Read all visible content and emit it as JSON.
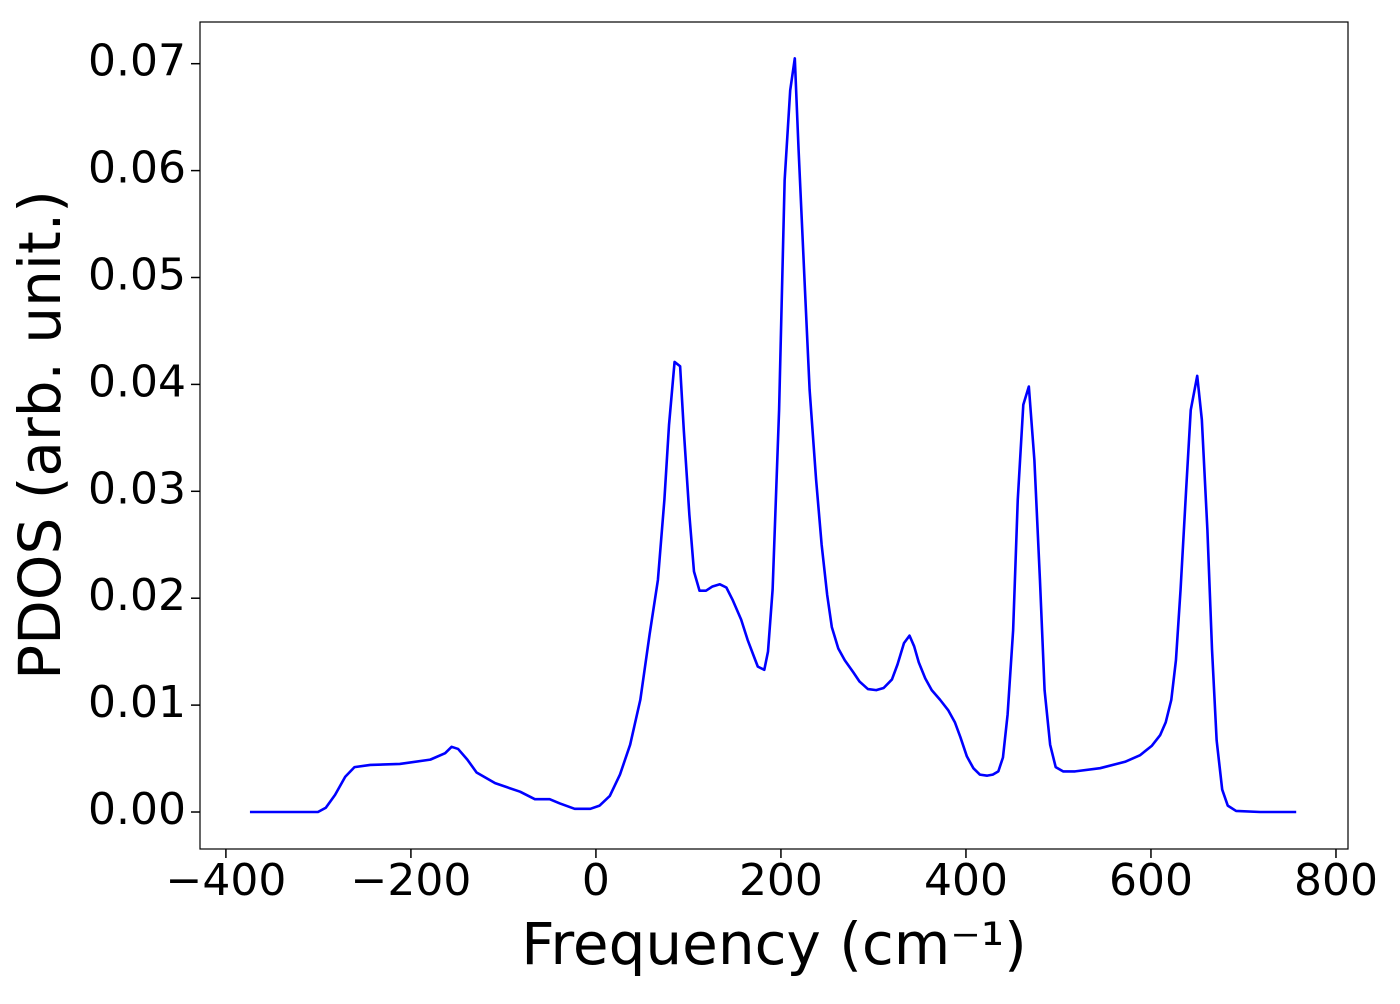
{
  "chart_data": {
    "type": "line",
    "xlabel": "Frequency (cm⁻¹)",
    "ylabel": "PDOS (arb. unit.)",
    "x": [
      -374,
      -300.5,
      -292,
      -282,
      -271,
      -261,
      -244,
      -212,
      -179,
      -163,
      -156,
      -149,
      -139,
      -129,
      -109,
      -82,
      -66,
      -50,
      -39,
      -23,
      -6,
      4,
      15,
      26,
      37,
      48,
      58,
      67,
      74,
      79,
      85,
      91,
      95,
      101,
      106,
      112,
      119,
      126,
      134,
      141,
      148,
      157,
      164,
      171,
      175,
      182,
      186,
      191,
      198,
      204,
      210,
      215,
      219,
      226,
      231,
      238,
      244,
      250,
      255,
      262,
      269,
      278,
      285,
      294,
      303,
      311,
      320,
      326,
      333,
      339,
      344,
      349,
      356,
      363,
      372,
      381,
      388,
      394,
      401,
      408,
      415,
      423,
      429,
      435,
      440,
      445,
      451,
      456,
      462,
      468,
      474,
      480,
      485,
      491,
      497,
      505,
      518,
      545,
      572,
      588,
      601,
      610,
      616,
      622,
      627,
      632,
      638,
      643,
      650,
      655,
      661,
      666,
      671,
      677,
      683,
      692,
      718,
      757
    ],
    "series": [
      {
        "name": "PDOS",
        "color": "#0000ff",
        "values": [
          0,
          0,
          0.0004,
          0.0016,
          0.0033,
          0.0042,
          0.0044,
          0.0045,
          0.0049,
          0.0055,
          0.0061,
          0.0059,
          0.0049,
          0.0037,
          0.0027,
          0.0019,
          0.0012,
          0.0012,
          0.0008,
          0.0003,
          0.0003,
          0.0006,
          0.0015,
          0.0035,
          0.0063,
          0.0105,
          0.0166,
          0.0217,
          0.0292,
          0.0362,
          0.0421,
          0.0417,
          0.0357,
          0.0278,
          0.0225,
          0.0207,
          0.0207,
          0.0211,
          0.0213,
          0.021,
          0.0198,
          0.018,
          0.0161,
          0.0145,
          0.0136,
          0.0133,
          0.015,
          0.0208,
          0.0376,
          0.0591,
          0.0675,
          0.0705,
          0.0621,
          0.0488,
          0.0395,
          0.0311,
          0.025,
          0.0203,
          0.0173,
          0.0153,
          0.0142,
          0.0131,
          0.0122,
          0.0115,
          0.0114,
          0.0116,
          0.0124,
          0.0138,
          0.0158,
          0.0165,
          0.0155,
          0.014,
          0.0125,
          0.0114,
          0.0105,
          0.0095,
          0.0084,
          0.007,
          0.0052,
          0.0041,
          0.0035,
          0.0034,
          0.0035,
          0.0038,
          0.0051,
          0.0091,
          0.017,
          0.0292,
          0.0381,
          0.0398,
          0.0329,
          0.0217,
          0.0114,
          0.0063,
          0.0042,
          0.0038,
          0.0038,
          0.0041,
          0.0047,
          0.0053,
          0.0062,
          0.0072,
          0.0084,
          0.0105,
          0.0142,
          0.0208,
          0.0301,
          0.0376,
          0.0408,
          0.0367,
          0.0264,
          0.0152,
          0.0067,
          0.0021,
          0.0006,
          0.0001,
          0,
          0
        ]
      }
    ],
    "xlim": [
      -428,
      813
    ],
    "ylim": [
      -0.00346,
      0.0739
    ],
    "xticks": [
      {
        "value": -400,
        "label": "−400"
      },
      {
        "value": -200,
        "label": "−200"
      },
      0,
      200,
      400,
      600,
      800
    ],
    "yticks": [
      {
        "value": 0,
        "label": "0.00"
      },
      0.01,
      0.02,
      0.03,
      0.04,
      0.05,
      0.06,
      0.07
    ],
    "grid": false
  }
}
